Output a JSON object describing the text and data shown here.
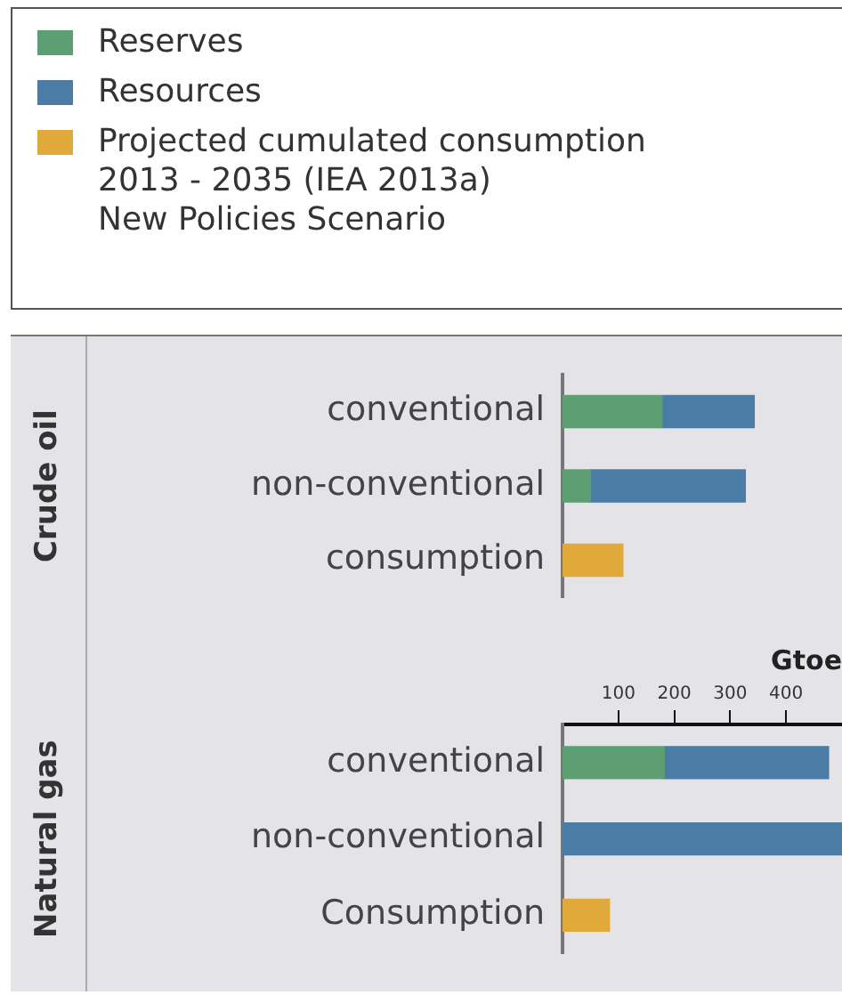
{
  "chart_data": [
    {
      "type": "bar",
      "ylabel": "Crude oil",
      "orientation": "horizontal",
      "stacked": true,
      "legend": "top",
      "tick_labels": "y",
      "grid": false,
      "categories": [
        "conventional",
        "non-conventional",
        "consumption"
      ],
      "xlim": [
        0,
        500
      ],
      "xticks": [
        100,
        200,
        300,
        400
      ],
      "series": [
        {
          "name": "Reserves",
          "color": "#5d9e73",
          "values": [
            178,
            50,
            null
          ]
        },
        {
          "name": "Resources",
          "color": "#4a7ca6",
          "values": [
            165,
            277,
            null
          ]
        },
        {
          "name": "Projected cumulated consumption\n2013 - 2035 (IEA 2013a)\nNew Policies Scenario",
          "color": "#e0a93a",
          "values": [
            null,
            null,
            108
          ]
        }
      ]
    },
    {
      "type": "bar",
      "ylabel": "Natural gas",
      "orientation": "horizontal",
      "stacked": true,
      "grid": false,
      "xlabel": "Gtoe",
      "categories": [
        "conventional",
        "non-conventional",
        "Consumption"
      ],
      "xlim": [
        0,
        500
      ],
      "xticks": [
        100,
        200,
        300,
        400
      ],
      "series": [
        {
          "name": "Reserves",
          "color": "#5d9e73",
          "values": [
            182,
            null,
            null
          ]
        },
        {
          "name": "Resources",
          "color": "#4a7ca6",
          "values": [
            294,
            500,
            null
          ]
        },
        {
          "name": "Projected cumulated consumption\n2013 - 2035 (IEA 2013a)\nNew Policies Scenario",
          "color": "#e0a93a",
          "values": [
            null,
            null,
            84
          ]
        }
      ]
    }
  ]
}
